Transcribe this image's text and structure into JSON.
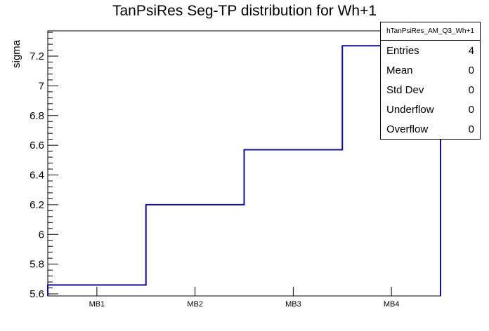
{
  "chart_data": {
    "type": "step-histogram",
    "title": "TanPsiRes Seg-TP distribution for Wh+1",
    "ylabel": "sigma",
    "xlabel": "",
    "categories": [
      "MB1",
      "MB2",
      "MB3",
      "MB4"
    ],
    "values": [
      5.66,
      6.2,
      6.57,
      7.27
    ],
    "xlim": [
      0.5,
      4.5
    ],
    "ylim": [
      5.586,
      7.37
    ],
    "y_major_ticks": [
      5.6,
      5.8,
      6.0,
      6.2,
      6.4,
      6.6,
      6.8,
      7.0,
      7.2
    ],
    "y_tick_labels": [
      "5.6",
      "5.8",
      "6",
      "6.2",
      "6.4",
      "6.6",
      "6.8",
      "7",
      "7.2"
    ],
    "y_minor_step": 0.04,
    "grid": false,
    "legend_position": "none",
    "line_color": "#101090",
    "frame_color": "#000000",
    "background": "#ffffff"
  },
  "stats": {
    "title": "hTanPsiRes_AM_Q3_Wh+1",
    "rows": [
      {
        "label": "Entries",
        "value": "4"
      },
      {
        "label": "Mean",
        "value": "0"
      },
      {
        "label": "Std Dev",
        "value": "0"
      },
      {
        "label": "Underflow",
        "value": "0"
      },
      {
        "label": "Overflow",
        "value": "0"
      }
    ]
  }
}
